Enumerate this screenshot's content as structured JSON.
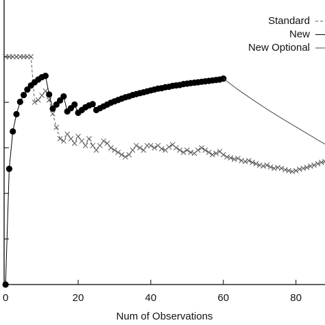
{
  "chart_data": {
    "type": "line",
    "xlabel": "Num of Observations",
    "xlim": [
      -0.4,
      88
    ],
    "xticks": [
      0,
      20,
      40,
      60,
      80
    ],
    "ylim": [
      0,
      6.2
    ],
    "yticks": [
      0,
      1,
      2,
      3,
      4,
      5
    ],
    "legend": "top-right",
    "series": [
      {
        "name": "Standard",
        "color": "#555555",
        "dash": true,
        "marker": "x",
        "x": [
          0,
          1,
          2,
          3,
          4,
          5,
          6,
          7,
          8,
          9,
          10,
          11,
          12,
          13,
          14,
          15,
          16,
          17,
          18,
          19,
          20,
          21,
          22,
          23,
          24,
          25,
          26,
          27,
          28,
          29,
          30,
          31,
          32,
          33,
          34,
          35,
          36,
          37,
          38,
          39,
          40,
          41,
          42,
          43,
          44,
          45,
          46,
          47,
          48,
          49,
          50,
          51,
          52,
          53,
          54,
          55,
          56,
          57,
          58,
          59,
          60,
          61,
          62,
          63,
          64,
          65,
          66,
          67,
          68,
          69,
          70,
          71,
          72,
          73,
          74,
          75,
          76,
          77,
          78,
          79,
          80,
          81,
          82,
          83,
          84,
          85,
          86,
          87,
          88
        ],
        "values": [
          5,
          5,
          5,
          5,
          5,
          5,
          5,
          5,
          4.0,
          4.05,
          4.15,
          4.25,
          4.05,
          3.75,
          3.45,
          3.2,
          3.15,
          3.3,
          3.2,
          3.1,
          3.25,
          3.15,
          3.05,
          3.2,
          3.05,
          2.95,
          3.05,
          3.15,
          3.1,
          3.0,
          2.95,
          2.9,
          2.85,
          2.8,
          2.85,
          2.95,
          3.05,
          3.0,
          2.95,
          3.05,
          3.05,
          3.0,
          3.05,
          2.98,
          2.95,
          3.02,
          3.07,
          3.0,
          2.95,
          2.9,
          2.95,
          2.9,
          2.88,
          2.95,
          3.0,
          2.95,
          2.9,
          2.85,
          2.88,
          2.92,
          2.85,
          2.8,
          2.78,
          2.75,
          2.77,
          2.72,
          2.7,
          2.72,
          2.68,
          2.65,
          2.62,
          2.6,
          2.62,
          2.58,
          2.55,
          2.57,
          2.55,
          2.52,
          2.5,
          2.48,
          2.5,
          2.53,
          2.55,
          2.57,
          2.6,
          2.62,
          2.65,
          2.68,
          2.7
        ]
      },
      {
        "name": "New",
        "color": "#000000",
        "dash": false,
        "marker": "circle",
        "x": [
          0,
          1,
          2,
          3,
          4,
          5,
          6,
          7,
          8,
          9,
          10,
          11,
          12,
          13,
          14,
          15,
          16,
          17,
          18,
          19,
          20,
          21,
          22,
          23,
          24,
          25,
          26,
          27,
          28,
          29,
          30,
          31,
          32,
          33,
          34,
          35,
          36,
          37,
          38,
          39,
          40,
          41,
          42,
          43,
          44,
          45,
          46,
          47,
          48,
          49,
          50,
          51,
          52,
          53,
          54,
          55,
          56,
          57,
          58,
          59,
          60
        ],
        "values": [
          0,
          2.54,
          3.36,
          3.74,
          4.01,
          4.16,
          4.28,
          4.37,
          4.44,
          4.5,
          4.55,
          4.58,
          4.17,
          3.86,
          3.95,
          4.04,
          4.13,
          3.8,
          3.87,
          3.95,
          3.77,
          3.83,
          3.89,
          3.93,
          3.96,
          3.83,
          3.87,
          3.91,
          3.95,
          3.99,
          4.02,
          4.05,
          4.08,
          4.11,
          4.13,
          4.16,
          4.18,
          4.2,
          4.22,
          4.24,
          4.26,
          4.28,
          4.3,
          4.31,
          4.33,
          4.34,
          4.36,
          4.37,
          4.38,
          4.4,
          4.41,
          4.42,
          4.43,
          4.44,
          4.45,
          4.46,
          4.47,
          4.48,
          4.49,
          4.5,
          4.52
        ]
      },
      {
        "name": "New Optional",
        "color": "#444444",
        "dash": false,
        "marker": "none",
        "x": [
          60,
          64,
          68,
          72,
          76,
          80,
          84,
          88
        ],
        "values": [
          4.52,
          4.28,
          4.06,
          3.85,
          3.65,
          3.46,
          3.27,
          3.08
        ]
      }
    ]
  }
}
